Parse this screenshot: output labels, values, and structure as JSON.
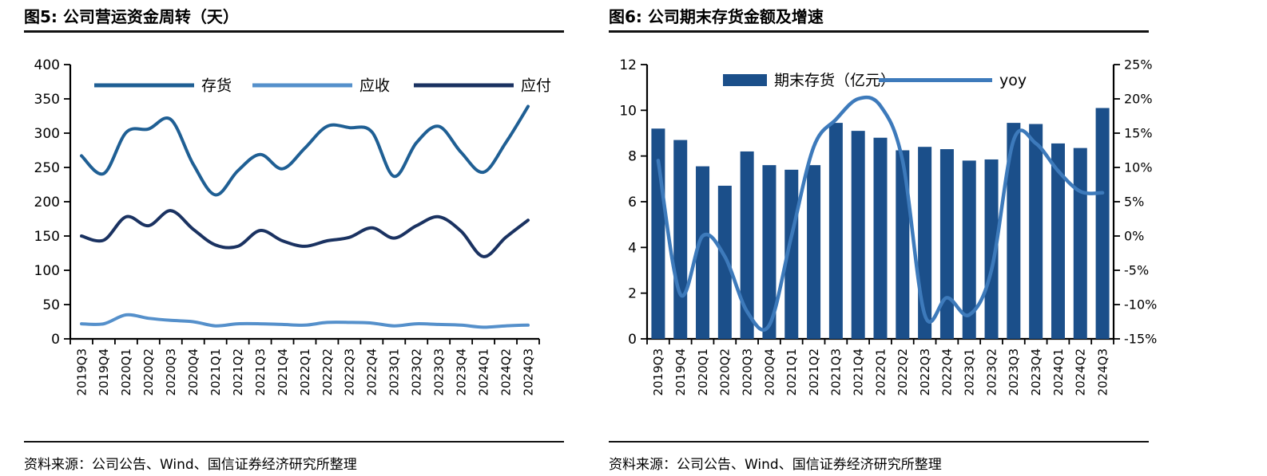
{
  "figure5": {
    "title": "图5: 公司营运资金周转（天）",
    "source": "资料来源：公司公告、Wind、国信证券经济研究所整理"
  },
  "figure6": {
    "title": "图6: 公司期末存货金额及增速",
    "source": "资料来源：公司公告、Wind、国信证券经济研究所整理"
  },
  "chart_data": [
    {
      "type": "line",
      "title": "图5: 公司营运资金周转（天）",
      "categories": [
        "2019Q3",
        "2019Q4",
        "2020Q1",
        "2020Q2",
        "2020Q3",
        "2020Q4",
        "2021Q1",
        "2021Q2",
        "2021Q3",
        "2021Q4",
        "2022Q1",
        "2022Q2",
        "2022Q3",
        "2022Q4",
        "2023Q1",
        "2023Q2",
        "2023Q3",
        "2023Q4",
        "2024Q1",
        "2024Q2",
        "2024Q3"
      ],
      "series": [
        {
          "name": "存货",
          "color": "#1F5F94",
          "values": [
            267,
            241,
            301,
            306,
            320,
            255,
            210,
            245,
            269,
            248,
            278,
            310,
            308,
            302,
            237,
            286,
            310,
            272,
            243,
            286,
            339
          ]
        },
        {
          "name": "应收",
          "color": "#5590CB",
          "values": [
            22,
            22,
            35,
            30,
            27,
            25,
            19,
            22,
            22,
            21,
            20,
            24,
            24,
            23,
            19,
            22,
            21,
            20,
            17,
            19,
            20
          ]
        },
        {
          "name": "应付",
          "color": "#1A3261",
          "values": [
            150,
            144,
            178,
            165,
            187,
            160,
            137,
            135,
            158,
            143,
            135,
            143,
            148,
            162,
            147,
            165,
            178,
            157,
            120,
            148,
            173
          ]
        }
      ],
      "ylim": [
        0,
        400
      ],
      "ytick_step": 50,
      "grid": false,
      "legend_position": "top-inside",
      "xlabel": "",
      "ylabel": ""
    },
    {
      "type": "bar+line",
      "title": "图6: 公司期末存货金额及增速",
      "categories": [
        "2019Q3",
        "2019Q4",
        "2020Q1",
        "2020Q2",
        "2020Q3",
        "2020Q4",
        "2021Q1",
        "2021Q2",
        "2021Q3",
        "2021Q4",
        "2022Q1",
        "2022Q2",
        "2022Q3",
        "2022Q4",
        "2023Q1",
        "2023Q2",
        "2023Q3",
        "2023Q4",
        "2024Q1",
        "2024Q2",
        "2024Q3"
      ],
      "bar_series": {
        "name": "期末存货（亿元）",
        "color": "#1B4F8A",
        "axis": "left",
        "values": [
          9.2,
          8.7,
          7.55,
          6.7,
          8.2,
          7.6,
          7.4,
          7.6,
          9.45,
          9.1,
          8.8,
          8.25,
          8.4,
          8.3,
          7.8,
          7.85,
          9.45,
          9.4,
          8.55,
          8.35,
          10.1
        ]
      },
      "line_series": {
        "name": "yoy",
        "color": "#3D7ABB",
        "axis": "right",
        "values": [
          11,
          -8.5,
          0,
          -3,
          -11,
          -13,
          0,
          13,
          17,
          20,
          19,
          11,
          -11.5,
          -9,
          -11.5,
          -5,
          14,
          13.5,
          9.5,
          6.5,
          6.3
        ]
      },
      "left_ylim": [
        0,
        12
      ],
      "left_ytick_step": 2,
      "right_ylim": [
        -15,
        25
      ],
      "right_ytick_step": 5,
      "right_unit": "%",
      "grid": false,
      "legend_position": "top-inside"
    }
  ]
}
